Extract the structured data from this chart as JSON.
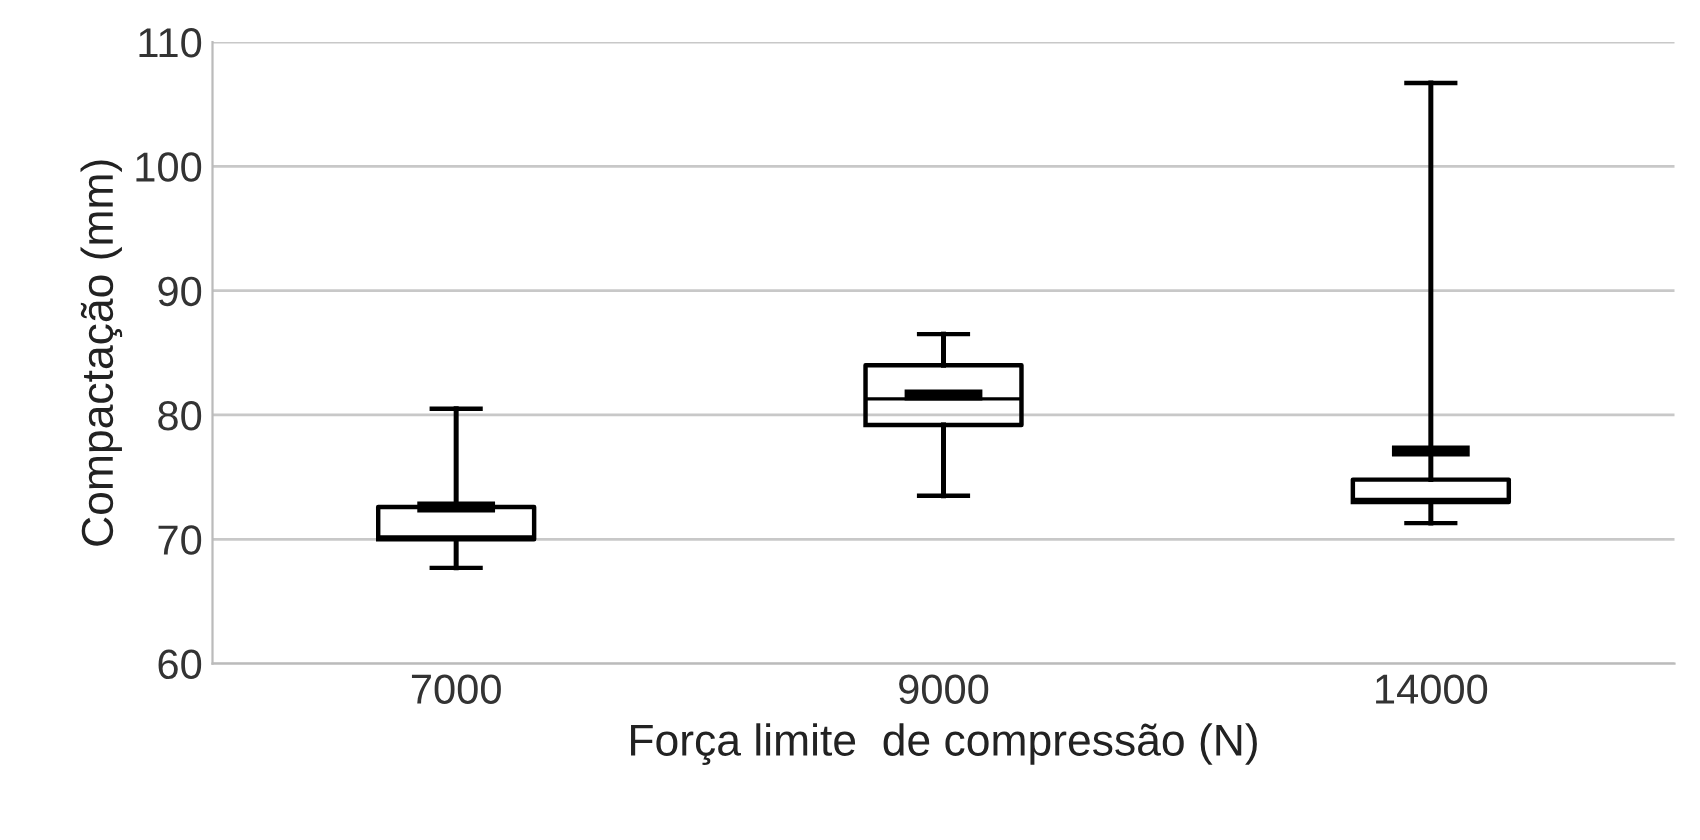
{
  "chart_data": {
    "type": "box",
    "xlabel": "Força limite  de compressão (N)",
    "ylabel": "Compactação (mm)",
    "categories": [
      "7000",
      "9000",
      "14000"
    ],
    "boxes": [
      {
        "low": 67.7,
        "q1": 70.0,
        "median": 70.2,
        "q3": 72.6,
        "high": 80.5,
        "mean": 72.6
      },
      {
        "low": 73.5,
        "q1": 79.2,
        "median": 81.3,
        "q3": 84.0,
        "high": 86.5,
        "mean": 81.6
      },
      {
        "low": 71.3,
        "q1": 73.0,
        "median": 73.2,
        "q3": 74.8,
        "high": 106.7,
        "mean": 77.1
      }
    ],
    "color": "#000000",
    "ylim": [
      60,
      110
    ],
    "yticks": [
      60,
      70,
      80,
      90,
      100,
      110
    ],
    "grid": "y"
  }
}
